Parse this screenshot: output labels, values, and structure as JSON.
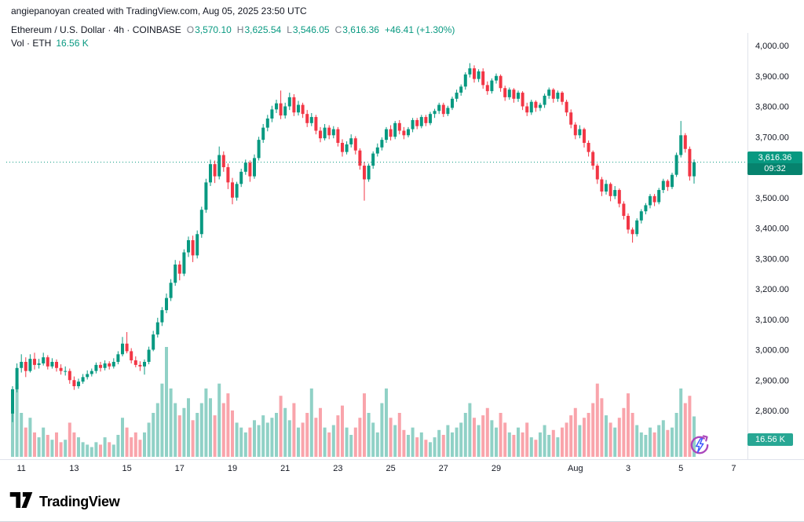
{
  "attribution": "angiepanoyan created with TradingView.com, Aug 05, 2025 23:50 UTC",
  "header": {
    "title": "Ethereum / U.S. Dollar · 4h · COINBASE",
    "o_key": "O",
    "o_val": "3,570.10",
    "h_key": "H",
    "h_val": "3,625.54",
    "l_key": "L",
    "l_val": "3,546.05",
    "c_key": "C",
    "c_val": "3,616.36",
    "change": "+46.41 (+1.30%)"
  },
  "volume_row": {
    "label": "Vol · ETH",
    "value": "16.56 K"
  },
  "price_badge": {
    "price": "3,616.36",
    "countdown": "09:32"
  },
  "volume_badge": {
    "value": "16.56 K"
  },
  "footer": {
    "brand": "TradingView"
  },
  "colors": {
    "up": "#089981",
    "down": "#f23645",
    "vol_up": "rgba(8,153,129,0.45)",
    "vol_down": "rgba(242,54,69,0.45)",
    "price_line": "#089981",
    "axis_line": "#e0e3eb",
    "text": "#131722",
    "muted": "#787b86",
    "price_badge_bg": "#089981",
    "volume_badge_bg": "#28a794"
  },
  "chart_data": {
    "type": "candlestick",
    "title": "Ethereum / U.S. Dollar · 4h · COINBASE",
    "interval": "4h",
    "current_price": 3616.36,
    "current_price_label": "3,616.36",
    "countdown": "09:32",
    "current_volume_label": "16.56 K",
    "y_axis": {
      "min": 2800,
      "max": 4000,
      "tick_step": 100,
      "ticks": [
        {
          "value": 4000,
          "label": "4,000.00"
        },
        {
          "value": 3900,
          "label": "3,900.00"
        },
        {
          "value": 3800,
          "label": "3,800.00"
        },
        {
          "value": 3700,
          "label": "3,700.00"
        },
        {
          "value": 3600,
          "label": "3,600.00"
        },
        {
          "value": 3500,
          "label": "3,500.00"
        },
        {
          "value": 3400,
          "label": "3,400.00"
        },
        {
          "value": 3300,
          "label": "3,300.00"
        },
        {
          "value": 3200,
          "label": "3,200.00"
        },
        {
          "value": 3100,
          "label": "3,100.00"
        },
        {
          "value": 3000,
          "label": "3,000.00"
        },
        {
          "value": 2900,
          "label": "2,900.00"
        },
        {
          "value": 2800,
          "label": "2,800.00"
        }
      ]
    },
    "x_ticks": [
      {
        "label": "11",
        "candle": 2
      },
      {
        "label": "13",
        "candle": 14
      },
      {
        "label": "15",
        "candle": 26
      },
      {
        "label": "17",
        "candle": 38
      },
      {
        "label": "19",
        "candle": 50
      },
      {
        "label": "21",
        "candle": 62
      },
      {
        "label": "23",
        "candle": 74
      },
      {
        "label": "25",
        "candle": 86
      },
      {
        "label": "27",
        "candle": 98
      },
      {
        "label": "29",
        "candle": 110
      },
      {
        "label": "Aug",
        "candle": 128,
        "strong": true
      },
      {
        "label": "3",
        "candle": 140
      },
      {
        "label": "5",
        "candle": 152
      },
      {
        "label": "7",
        "candle": 164
      }
    ],
    "volume_max_k": 45,
    "candles": [
      [
        2790,
        2880,
        2762,
        2870,
        25
      ],
      [
        2870,
        2955,
        2860,
        2940,
        30
      ],
      [
        2940,
        2985,
        2925,
        2960,
        18
      ],
      [
        2960,
        2975,
        2910,
        2930,
        12
      ],
      [
        2930,
        2985,
        2925,
        2970,
        16
      ],
      [
        2970,
        2990,
        2935,
        2950,
        10
      ],
      [
        2950,
        2970,
        2938,
        2955,
        8
      ],
      [
        2955,
        2990,
        2948,
        2975,
        12
      ],
      [
        2975,
        2982,
        2935,
        2945,
        9
      ],
      [
        2945,
        2972,
        2938,
        2960,
        7
      ],
      [
        2960,
        2968,
        2928,
        2940,
        10
      ],
      [
        2940,
        2952,
        2918,
        2930,
        6
      ],
      [
        2930,
        2945,
        2915,
        2930,
        7
      ],
      [
        2930,
        2938,
        2888,
        2900,
        14
      ],
      [
        2900,
        2912,
        2868,
        2880,
        10
      ],
      [
        2880,
        2905,
        2872,
        2895,
        8
      ],
      [
        2895,
        2920,
        2888,
        2910,
        6
      ],
      [
        2910,
        2932,
        2902,
        2920,
        5
      ],
      [
        2920,
        2938,
        2912,
        2930,
        4
      ],
      [
        2930,
        2958,
        2922,
        2950,
        6
      ],
      [
        2950,
        2960,
        2928,
        2940,
        5
      ],
      [
        2940,
        2965,
        2932,
        2955,
        8
      ],
      [
        2955,
        2962,
        2935,
        2945,
        6
      ],
      [
        2945,
        2972,
        2938,
        2960,
        5
      ],
      [
        2960,
        2995,
        2952,
        2985,
        9
      ],
      [
        2985,
        3042,
        2978,
        3020,
        16
      ],
      [
        3020,
        3058,
        2988,
        2995,
        12
      ],
      [
        2995,
        3005,
        2955,
        2965,
        8
      ],
      [
        2965,
        2978,
        2942,
        2950,
        10
      ],
      [
        2950,
        2962,
        2930,
        2945,
        7
      ],
      [
        2945,
        2968,
        2918,
        2960,
        10
      ],
      [
        2960,
        3010,
        2952,
        3000,
        14
      ],
      [
        3000,
        3062,
        2995,
        3050,
        18
      ],
      [
        3050,
        3105,
        3040,
        3090,
        22
      ],
      [
        3090,
        3140,
        3078,
        3130,
        30
      ],
      [
        3130,
        3185,
        3120,
        3170,
        45
      ],
      [
        3170,
        3232,
        3160,
        3220,
        28
      ],
      [
        3220,
        3295,
        3210,
        3280,
        22
      ],
      [
        3280,
        3292,
        3228,
        3250,
        17
      ],
      [
        3250,
        3330,
        3242,
        3320,
        20
      ],
      [
        3320,
        3372,
        3305,
        3360,
        24
      ],
      [
        3360,
        3375,
        3288,
        3310,
        15
      ],
      [
        3310,
        3392,
        3300,
        3380,
        18
      ],
      [
        3380,
        3470,
        3368,
        3460,
        22
      ],
      [
        3460,
        3562,
        3450,
        3550,
        28
      ],
      [
        3550,
        3625,
        3538,
        3610,
        24
      ],
      [
        3610,
        3622,
        3548,
        3570,
        17
      ],
      [
        3570,
        3668,
        3560,
        3640,
        30
      ],
      [
        3640,
        3652,
        3585,
        3600,
        22
      ],
      [
        3600,
        3612,
        3528,
        3550,
        26
      ],
      [
        3550,
        3565,
        3478,
        3500,
        19
      ],
      [
        3500,
        3552,
        3490,
        3545,
        14
      ],
      [
        3545,
        3595,
        3535,
        3585,
        12
      ],
      [
        3585,
        3625,
        3575,
        3615,
        10
      ],
      [
        3615,
        3622,
        3552,
        3570,
        12
      ],
      [
        3570,
        3642,
        3562,
        3630,
        15
      ],
      [
        3630,
        3700,
        3622,
        3690,
        13
      ],
      [
        3690,
        3742,
        3680,
        3730,
        17
      ],
      [
        3730,
        3772,
        3718,
        3760,
        14
      ],
      [
        3760,
        3802,
        3748,
        3790,
        16
      ],
      [
        3790,
        3822,
        3778,
        3810,
        18
      ],
      [
        3810,
        3852,
        3758,
        3770,
        25
      ],
      [
        3770,
        3812,
        3760,
        3800,
        20
      ],
      [
        3800,
        3845,
        3788,
        3830,
        15
      ],
      [
        3830,
        3840,
        3768,
        3780,
        22
      ],
      [
        3780,
        3818,
        3770,
        3805,
        12
      ],
      [
        3805,
        3812,
        3762,
        3775,
        14
      ],
      [
        3775,
        3788,
        3732,
        3745,
        18
      ],
      [
        3745,
        3778,
        3735,
        3765,
        28
      ],
      [
        3765,
        3772,
        3708,
        3720,
        16
      ],
      [
        3720,
        3732,
        3682,
        3695,
        20
      ],
      [
        3695,
        3742,
        3688,
        3730,
        12
      ],
      [
        3730,
        3738,
        3692,
        3705,
        10
      ],
      [
        3705,
        3735,
        3695,
        3725,
        13
      ],
      [
        3725,
        3732,
        3668,
        3680,
        17
      ],
      [
        3680,
        3692,
        3635,
        3650,
        21
      ],
      [
        3650,
        3685,
        3642,
        3675,
        12
      ],
      [
        3675,
        3708,
        3665,
        3695,
        9
      ],
      [
        3695,
        3702,
        3642,
        3655,
        12
      ],
      [
        3655,
        3662,
        3592,
        3605,
        16
      ],
      [
        3605,
        3618,
        3490,
        3560,
        26
      ],
      [
        3560,
        3612,
        3552,
        3605,
        18
      ],
      [
        3605,
        3652,
        3595,
        3645,
        14
      ],
      [
        3645,
        3678,
        3635,
        3665,
        10
      ],
      [
        3665,
        3698,
        3655,
        3690,
        22
      ],
      [
        3690,
        3732,
        3680,
        3725,
        28
      ],
      [
        3725,
        3738,
        3688,
        3700,
        16
      ],
      [
        3700,
        3752,
        3692,
        3745,
        13
      ],
      [
        3745,
        3755,
        3708,
        3720,
        18
      ],
      [
        3720,
        3732,
        3692,
        3705,
        11
      ],
      [
        3705,
        3732,
        3698,
        3725,
        9
      ],
      [
        3725,
        3762,
        3715,
        3755,
        12
      ],
      [
        3755,
        3762,
        3725,
        3735,
        8
      ],
      [
        3735,
        3772,
        3728,
        3765,
        10
      ],
      [
        3765,
        3772,
        3735,
        3745,
        7
      ],
      [
        3745,
        3782,
        3738,
        3775,
        6
      ],
      [
        3775,
        3792,
        3762,
        3785,
        8
      ],
      [
        3785,
        3812,
        3775,
        3805,
        11
      ],
      [
        3805,
        3812,
        3765,
        3775,
        9
      ],
      [
        3775,
        3802,
        3768,
        3795,
        13
      ],
      [
        3795,
        3832,
        3788,
        3825,
        10
      ],
      [
        3825,
        3855,
        3815,
        3845,
        12
      ],
      [
        3845,
        3872,
        3835,
        3865,
        14
      ],
      [
        3865,
        3912,
        3855,
        3905,
        18
      ],
      [
        3905,
        3942,
        3895,
        3925,
        22
      ],
      [
        3925,
        3935,
        3878,
        3890,
        16
      ],
      [
        3890,
        3922,
        3880,
        3915,
        13
      ],
      [
        3915,
        3925,
        3858,
        3870,
        17
      ],
      [
        3870,
        3882,
        3838,
        3850,
        20
      ],
      [
        3850,
        3892,
        3842,
        3885,
        15
      ],
      [
        3885,
        3908,
        3875,
        3900,
        12
      ],
      [
        3900,
        3905,
        3848,
        3860,
        18
      ],
      [
        3860,
        3868,
        3818,
        3830,
        14
      ],
      [
        3830,
        3862,
        3822,
        3855,
        10
      ],
      [
        3855,
        3860,
        3812,
        3825,
        9
      ],
      [
        3825,
        3852,
        3815,
        3845,
        12
      ],
      [
        3845,
        3850,
        3788,
        3800,
        10
      ],
      [
        3800,
        3812,
        3768,
        3780,
        14
      ],
      [
        3780,
        3822,
        3772,
        3815,
        8
      ],
      [
        3815,
        3820,
        3782,
        3795,
        7
      ],
      [
        3795,
        3812,
        3785,
        3805,
        10
      ],
      [
        3805,
        3842,
        3795,
        3835,
        13
      ],
      [
        3835,
        3862,
        3825,
        3855,
        9
      ],
      [
        3855,
        3860,
        3812,
        3825,
        11
      ],
      [
        3825,
        3852,
        3815,
        3845,
        8
      ],
      [
        3845,
        3850,
        3805,
        3815,
        12
      ],
      [
        3815,
        3822,
        3768,
        3780,
        14
      ],
      [
        3780,
        3790,
        3728,
        3740,
        17
      ],
      [
        3740,
        3748,
        3692,
        3705,
        20
      ],
      [
        3705,
        3738,
        3695,
        3725,
        13
      ],
      [
        3725,
        3730,
        3665,
        3680,
        16
      ],
      [
        3680,
        3688,
        3635,
        3650,
        18
      ],
      [
        3650,
        3655,
        3592,
        3605,
        22
      ],
      [
        3605,
        3612,
        3545,
        3560,
        30
      ],
      [
        3560,
        3568,
        3505,
        3520,
        24
      ],
      [
        3520,
        3558,
        3510,
        3545,
        17
      ],
      [
        3545,
        3550,
        3488,
        3505,
        14
      ],
      [
        3505,
        3538,
        3495,
        3525,
        12
      ],
      [
        3525,
        3530,
        3468,
        3480,
        16
      ],
      [
        3480,
        3488,
        3428,
        3440,
        20
      ],
      [
        3440,
        3448,
        3382,
        3395,
        26
      ],
      [
        3395,
        3402,
        3352,
        3380,
        18
      ],
      [
        3380,
        3432,
        3372,
        3425,
        13
      ],
      [
        3425,
        3462,
        3415,
        3455,
        10
      ],
      [
        3455,
        3482,
        3445,
        3475,
        9
      ],
      [
        3475,
        3512,
        3465,
        3505,
        12
      ],
      [
        3505,
        3512,
        3472,
        3485,
        10
      ],
      [
        3485,
        3532,
        3478,
        3525,
        13
      ],
      [
        3525,
        3562,
        3515,
        3555,
        15
      ],
      [
        3555,
        3560,
        3522,
        3535,
        11
      ],
      [
        3535,
        3582,
        3528,
        3575,
        12
      ],
      [
        3575,
        3648,
        3568,
        3640,
        18
      ],
      [
        3640,
        3752,
        3632,
        3705,
        28
      ],
      [
        3705,
        3712,
        3648,
        3660,
        22
      ],
      [
        3660,
        3668,
        3556,
        3570,
        25
      ],
      [
        3570.1,
        3625.54,
        3546.05,
        3616.36,
        16.56
      ]
    ]
  }
}
